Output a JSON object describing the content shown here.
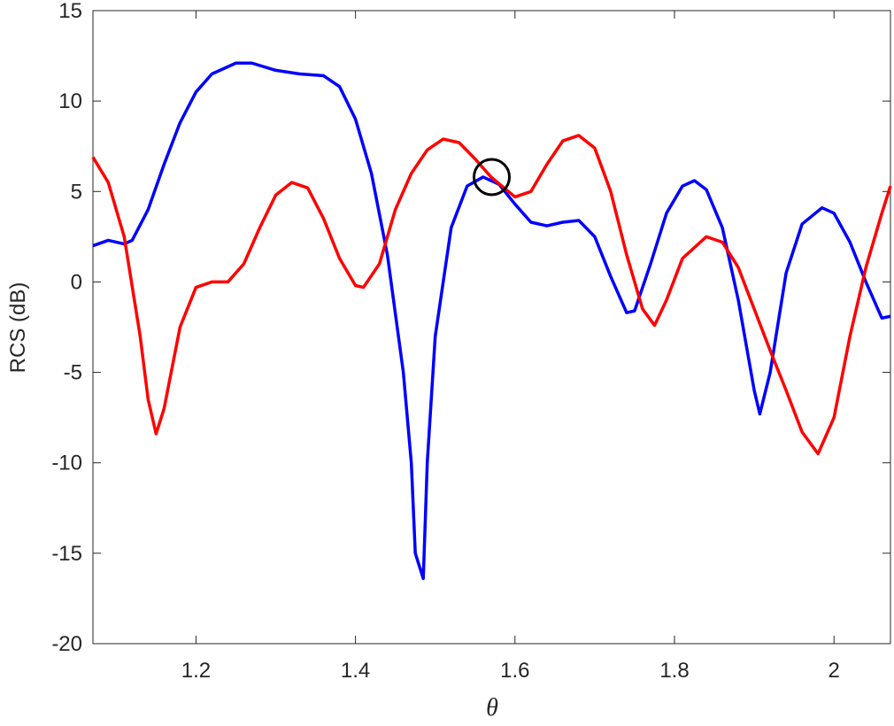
{
  "chart_data": {
    "type": "line",
    "xlabel": "θ",
    "ylabel": "RCS (dB)",
    "xlim": [
      1.0708,
      2.0708
    ],
    "ylim": [
      -20,
      15
    ],
    "xticks": [
      1.2,
      1.4,
      1.6,
      1.8,
      2
    ],
    "yticks": [
      -20,
      -15,
      -10,
      -5,
      0,
      5,
      10,
      15
    ],
    "grid": false,
    "series": [
      {
        "color": "#0000ff",
        "x": [
          1.0708,
          1.09,
          1.11,
          1.12,
          1.14,
          1.16,
          1.18,
          1.2,
          1.22,
          1.25,
          1.27,
          1.3,
          1.33,
          1.36,
          1.38,
          1.4,
          1.42,
          1.44,
          1.46,
          1.47,
          1.475,
          1.485,
          1.49,
          1.5,
          1.52,
          1.54,
          1.56,
          1.58,
          1.6,
          1.62,
          1.64,
          1.66,
          1.68,
          1.7,
          1.72,
          1.74,
          1.75,
          1.77,
          1.79,
          1.81,
          1.825,
          1.84,
          1.86,
          1.88,
          1.9,
          1.907,
          1.92,
          1.94,
          1.96,
          1.985,
          2.0,
          2.02,
          2.04,
          2.06,
          2.0708
        ],
        "values": [
          2,
          2.3,
          2.1,
          2.3,
          4,
          6.5,
          8.8,
          10.5,
          11.5,
          12.1,
          12.1,
          11.7,
          11.5,
          11.4,
          10.8,
          9,
          6,
          1.5,
          -5,
          -10,
          -15,
          -16.4,
          -10,
          -3,
          3,
          5.3,
          5.8,
          5.4,
          4.3,
          3.3,
          3.1,
          3.3,
          3.4,
          2.5,
          0.3,
          -1.7,
          -1.6,
          1,
          3.8,
          5.3,
          5.6,
          5.1,
          3,
          -1,
          -6,
          -7.3,
          -5,
          0.5,
          3.2,
          4.1,
          3.8,
          2.2,
          0,
          -2,
          -1.9
        ]
      },
      {
        "color": "#ff0000",
        "x": [
          1.0708,
          1.09,
          1.11,
          1.13,
          1.14,
          1.15,
          1.16,
          1.18,
          1.2,
          1.22,
          1.24,
          1.26,
          1.28,
          1.3,
          1.32,
          1.34,
          1.36,
          1.38,
          1.4,
          1.41,
          1.43,
          1.45,
          1.47,
          1.49,
          1.51,
          1.53,
          1.55,
          1.57,
          1.6,
          1.62,
          1.64,
          1.66,
          1.68,
          1.7,
          1.72,
          1.74,
          1.76,
          1.775,
          1.79,
          1.81,
          1.84,
          1.86,
          1.88,
          1.9,
          1.92,
          1.94,
          1.96,
          1.98,
          2.0,
          2.02,
          2.04,
          2.06,
          2.0708
        ],
        "values": [
          6.9,
          5.5,
          2.5,
          -3,
          -6.5,
          -8.4,
          -7,
          -2.5,
          -0.3,
          0,
          0,
          1,
          3,
          4.8,
          5.5,
          5.2,
          3.5,
          1.3,
          -0.2,
          -0.3,
          1,
          4,
          6,
          7.3,
          7.9,
          7.7,
          6.8,
          5.8,
          4.7,
          5,
          6.5,
          7.8,
          8.1,
          7.4,
          5,
          1.5,
          -1.5,
          -2.4,
          -1,
          1.3,
          2.5,
          2.2,
          0.8,
          -1.5,
          -3.8,
          -6,
          -8.3,
          -9.5,
          -7.5,
          -3,
          0.8,
          3.8,
          5.3
        ]
      }
    ],
    "markers": [
      {
        "x": 1.5708,
        "y": 5.8,
        "color": "#000000"
      }
    ]
  }
}
